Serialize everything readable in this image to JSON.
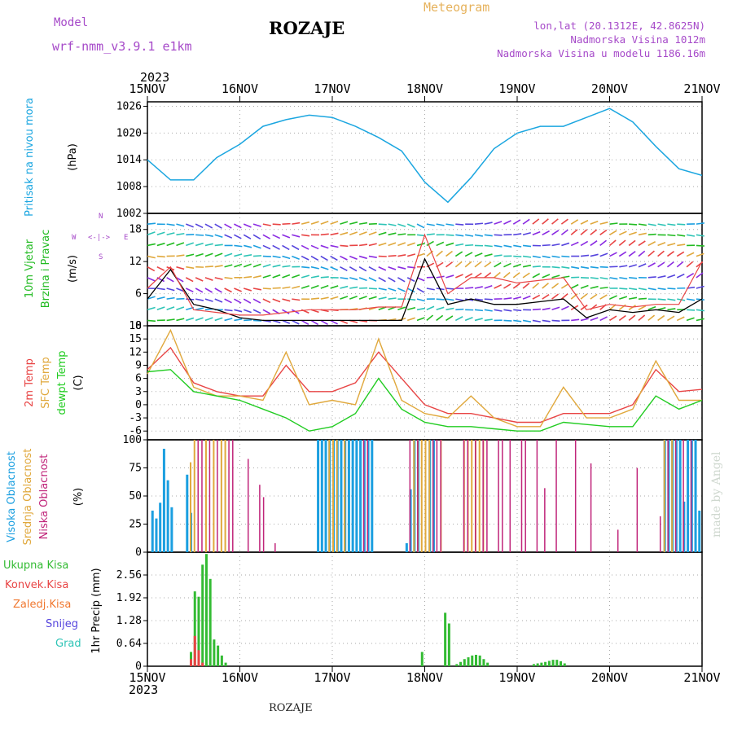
{
  "header": {
    "title": "ROZAJE",
    "model_label": "Model",
    "model_name": "wrf-nmm_v3.9.1 e1km",
    "meteogram_label": "Meteogram",
    "lonlat": "lon,lat (20.1312E, 42.8625N)",
    "elevation": "Nadmorska Visina 1012m",
    "model_elevation": "Nadmorska Visina u modelu 1186.16m"
  },
  "footer": {
    "location": "ROZAJE",
    "credit": "made by Angel"
  },
  "colors": {
    "pressure": "#1ba6e0",
    "wind": "#22bb22",
    "temp2m": "#e84444",
    "sfc": "#e0a83c",
    "dewpt": "#22cc22",
    "cl_high": "#1b9fe0",
    "cl_mid": "#e0a83c",
    "cl_low": "#c0257a",
    "precip_total": "#33bb33",
    "precip_conv": "#e84444",
    "precip_frz": "#f07830",
    "snow": "#5544dd",
    "grad": "#2ec4b6"
  },
  "chart_data": [
    {
      "type": "line",
      "panel": "pressure",
      "year": "2023",
      "x_ticks": [
        "15NOV",
        "16NOV",
        "17NOV",
        "18NOV",
        "19NOV",
        "20NOV",
        "21NOV"
      ],
      "title_left": "Pritisak na nivou mora",
      "ylabel": "(hPa)",
      "ylim": [
        1002,
        1027
      ],
      "yticks": [
        1002,
        1008,
        1014,
        1020,
        1026
      ],
      "grid": true,
      "series": [
        {
          "x_hours": [
            0,
            6,
            12,
            18,
            24,
            30,
            36,
            42,
            48,
            54,
            60,
            66,
            72,
            78,
            84,
            90,
            96,
            102,
            108,
            114,
            120,
            126,
            132,
            138,
            144
          ],
          "values": [
            1014,
            1009.5,
            1009.5,
            1014.5,
            1017.5,
            1021.5,
            1023,
            1024,
            1023.5,
            1021.5,
            1019,
            1016,
            1009,
            1004.5,
            1010,
            1016.5,
            1020,
            1021.5,
            1021.5,
            1023.5,
            1025.5,
            1022.5,
            1017,
            1012,
            1010.5
          ]
        }
      ]
    },
    {
      "type": "line",
      "panel": "wind",
      "title_left": "10m Vjetar",
      "title_left2": "Brzina i Pravac",
      "ylabel": "(m/s)",
      "compass": [
        "N",
        "W",
        "<-|->",
        "E",
        "S"
      ],
      "ylim": [
        0,
        21
      ],
      "yticks": [
        0,
        6,
        12,
        18
      ],
      "grid": true,
      "series": [
        {
          "x_hours": [
            0,
            6,
            12,
            18,
            24,
            30,
            36,
            42,
            48,
            54,
            60,
            66,
            72,
            78,
            84,
            90,
            96,
            102,
            108,
            114,
            120,
            126,
            132,
            138,
            144
          ],
          "values": [
            5,
            10.5,
            4,
            3,
            1.5,
            1,
            1,
            1,
            1,
            1,
            1,
            1,
            12.5,
            4,
            5,
            4,
            4,
            4.5,
            5,
            1.5,
            3,
            2.5,
            3,
            2.5,
            5
          ]
        },
        {
          "x_hours": [
            0,
            6,
            12,
            18,
            24,
            30,
            36,
            42,
            48,
            54,
            60,
            66,
            72,
            78,
            84,
            90,
            96,
            102,
            108,
            114,
            120,
            126,
            132,
            138,
            144
          ],
          "values": [
            7,
            11,
            3,
            2.5,
            2,
            2,
            2.5,
            3,
            3,
            3,
            3.5,
            3.5,
            17,
            6,
            9,
            9,
            8,
            8.5,
            9,
            3,
            4,
            3.5,
            4,
            4,
            12
          ]
        }
      ],
      "arrow_rows_ms": [
        1,
        3,
        5,
        7,
        9,
        11,
        13,
        15,
        17,
        19
      ],
      "arrow_colors": [
        "#22bb22",
        "#2ec4b6",
        "#1b9fe0",
        "#5544dd",
        "#8a2be2",
        "#e84444",
        "#e0a83c"
      ]
    },
    {
      "type": "line",
      "panel": "temperature",
      "titles_left": [
        "2m Temp",
        "SFC Temp",
        "dewpt Temp"
      ],
      "ylabel": "(C)",
      "ylim": [
        -8,
        18
      ],
      "yticks": [
        -6,
        -3,
        0,
        3,
        6,
        9,
        12,
        15,
        18
      ],
      "grid": true,
      "series": [
        {
          "name": "2m Temp",
          "x_hours": [
            0,
            6,
            12,
            18,
            24,
            30,
            36,
            42,
            48,
            54,
            60,
            66,
            72,
            78,
            84,
            90,
            96,
            102,
            108,
            114,
            120,
            126,
            132,
            138,
            144
          ],
          "values": [
            8,
            13,
            5,
            3,
            2,
            2,
            9,
            3,
            3,
            5,
            12,
            6,
            0,
            -2,
            -2,
            -3,
            -4,
            -4,
            -2,
            -2,
            -2,
            0,
            8,
            3,
            3.5
          ]
        },
        {
          "name": "SFC Temp",
          "x_hours": [
            0,
            6,
            12,
            18,
            24,
            30,
            36,
            42,
            48,
            54,
            60,
            66,
            72,
            78,
            84,
            90,
            96,
            102,
            108,
            114,
            120,
            126,
            132,
            138,
            144
          ],
          "values": [
            7,
            17,
            4,
            2,
            2,
            1,
            12,
            0,
            1,
            0,
            15,
            1,
            -2,
            -3,
            2,
            -3,
            -5,
            -5,
            4,
            -3,
            -3,
            -1,
            10,
            1,
            1
          ]
        },
        {
          "name": "dewpt Temp",
          "x_hours": [
            0,
            6,
            12,
            18,
            24,
            30,
            36,
            42,
            48,
            54,
            60,
            66,
            72,
            78,
            84,
            90,
            96,
            102,
            108,
            114,
            120,
            126,
            132,
            138,
            144
          ],
          "values": [
            7.5,
            8,
            3,
            2,
            1,
            -1,
            -3,
            -6,
            -5,
            -2,
            6,
            -1,
            -4,
            -5,
            -5,
            -5.5,
            -6,
            -6,
            -4,
            -4.5,
            -5,
            -5,
            2,
            -1,
            1
          ]
        }
      ]
    },
    {
      "type": "bar",
      "panel": "cloud",
      "titles_left": [
        "Visoka Oblacnost",
        "Srednja Oblacnost",
        "Niska Oblacnost"
      ],
      "ylabel": "(%)",
      "ylim": [
        0,
        100
      ],
      "yticks": [
        0,
        25,
        50,
        75,
        100
      ],
      "grid": true,
      "series": [
        {
          "name": "Visoka Oblacnost",
          "x_hours": [
            1,
            2,
            3,
            4,
            5,
            6,
            10,
            11,
            44,
            45,
            46,
            47,
            48,
            49,
            50,
            51,
            52,
            53,
            54,
            55,
            56,
            57,
            58,
            67,
            68,
            69,
            70,
            73,
            74,
            134,
            135,
            136,
            137,
            138,
            139,
            140,
            141,
            142,
            143
          ],
          "values": [
            37,
            30,
            44,
            92,
            64,
            40,
            69,
            35,
            100,
            100,
            100,
            100,
            100,
            100,
            100,
            100,
            100,
            100,
            100,
            100,
            100,
            100,
            100,
            8,
            56,
            100,
            100,
            100,
            100,
            100,
            100,
            100,
            100,
            100,
            45,
            100,
            100,
            100,
            37
          ]
        },
        {
          "name": "Srednja Oblacnost",
          "x_hours": [
            11,
            12,
            15,
            17,
            19,
            20,
            47,
            48,
            49,
            51,
            69,
            70,
            71,
            72,
            73,
            76,
            82,
            83,
            84,
            85,
            86,
            87,
            134,
            136
          ],
          "values": [
            80,
            100,
            100,
            100,
            100,
            100,
            100,
            100,
            100,
            100,
            100,
            100,
            100,
            100,
            100,
            100,
            100,
            100,
            100,
            100,
            100,
            100,
            100,
            100
          ]
        },
        {
          "name": "Niska Oblacnost",
          "x_hours": [
            13,
            14,
            16,
            18,
            21,
            22,
            26,
            29,
            30,
            33,
            56,
            57,
            68,
            70,
            74,
            75,
            76,
            82,
            83,
            85,
            87,
            88,
            91,
            92,
            94,
            97,
            98,
            101,
            103,
            106,
            111,
            115,
            122,
            127,
            133,
            135,
            137,
            139,
            141
          ],
          "values": [
            100,
            100,
            100,
            100,
            100,
            100,
            83,
            60,
            49,
            8,
            100,
            100,
            100,
            100,
            100,
            100,
            100,
            100,
            100,
            100,
            100,
            100,
            100,
            100,
            100,
            100,
            100,
            100,
            57,
            100,
            100,
            79,
            20,
            75,
            32,
            100,
            100,
            100,
            100
          ]
        }
      ]
    },
    {
      "type": "bar",
      "panel": "precip",
      "titles_left": [
        "Ukupna Kisa",
        "Konvek.Kisa",
        "Zaledj.Kisa",
        "Snijeg",
        "Grad"
      ],
      "ylabel": "1hr Precip (mm)",
      "ylim": [
        0,
        3.2
      ],
      "yticks": [
        0,
        0.64,
        1.28,
        1.92,
        2.56
      ],
      "grid": true,
      "series": [
        {
          "name": "Ukupna Kisa",
          "x_hours": [
            11,
            12,
            13,
            14,
            15,
            16,
            17,
            18,
            19,
            20,
            71,
            77,
            78,
            80,
            81,
            82,
            83,
            84,
            85,
            86,
            87,
            88,
            100,
            101,
            102,
            103,
            104,
            105,
            106,
            107,
            108
          ],
          "values": [
            0.4,
            2.1,
            1.95,
            2.85,
            3.15,
            2.45,
            0.75,
            0.58,
            0.3,
            0.1,
            0.4,
            1.5,
            1.2,
            0.06,
            0.12,
            0.2,
            0.25,
            0.3,
            0.32,
            0.3,
            0.2,
            0.1,
            0.06,
            0.08,
            0.1,
            0.12,
            0.15,
            0.18,
            0.18,
            0.14,
            0.08
          ]
        },
        {
          "name": "Konvek.Kisa",
          "x_hours": [
            11,
            12,
            13,
            14
          ],
          "values": [
            0.2,
            0.85,
            0.45,
            0.1
          ]
        }
      ]
    }
  ]
}
